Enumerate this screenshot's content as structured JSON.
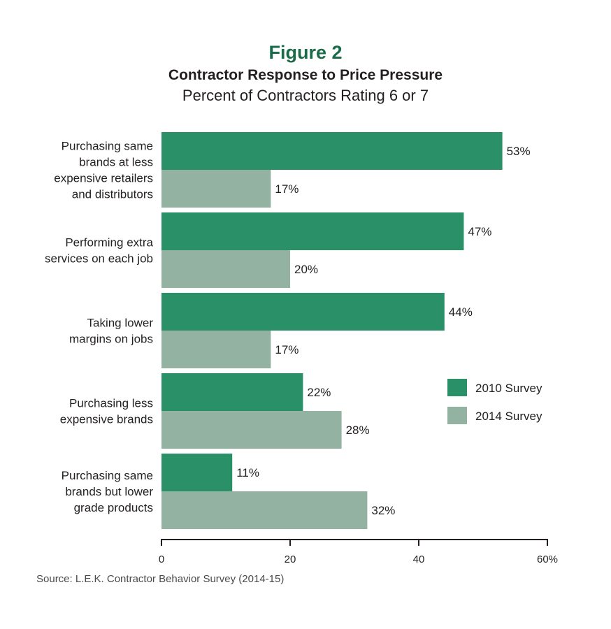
{
  "figure_label": "Figure 2",
  "source": "Source: L.E.K. Contractor Behavior Survey (2014-15)",
  "colors": {
    "title": "#1a6b48",
    "series_2010": "#2a9068",
    "series_2014": "#93b2a2",
    "axis": "#231f20"
  },
  "chart_data": {
    "type": "bar",
    "orientation": "horizontal",
    "title": "Contractor Response to Price Pressure",
    "subtitle": "Percent of Contractors Rating 6 or 7",
    "categories": [
      [
        "Purchasing same",
        "brands at less",
        "expensive retailers",
        "and distributors"
      ],
      [
        "Performing extra",
        "services on each job"
      ],
      [
        "Taking lower",
        "margins on jobs"
      ],
      [
        "Purchasing less",
        "expensive brands"
      ],
      [
        "Purchasing same",
        "brands but lower",
        "grade products"
      ]
    ],
    "series": [
      {
        "name": "2010 Survey",
        "values": [
          53,
          47,
          44,
          22,
          11
        ]
      },
      {
        "name": "2014 Survey",
        "values": [
          17,
          20,
          17,
          28,
          32
        ]
      }
    ],
    "value_suffix": "%",
    "xlim": [
      0,
      60
    ],
    "xticks": [
      "0",
      "20",
      "40",
      "60%"
    ],
    "grid": false,
    "legend_position": "right"
  }
}
